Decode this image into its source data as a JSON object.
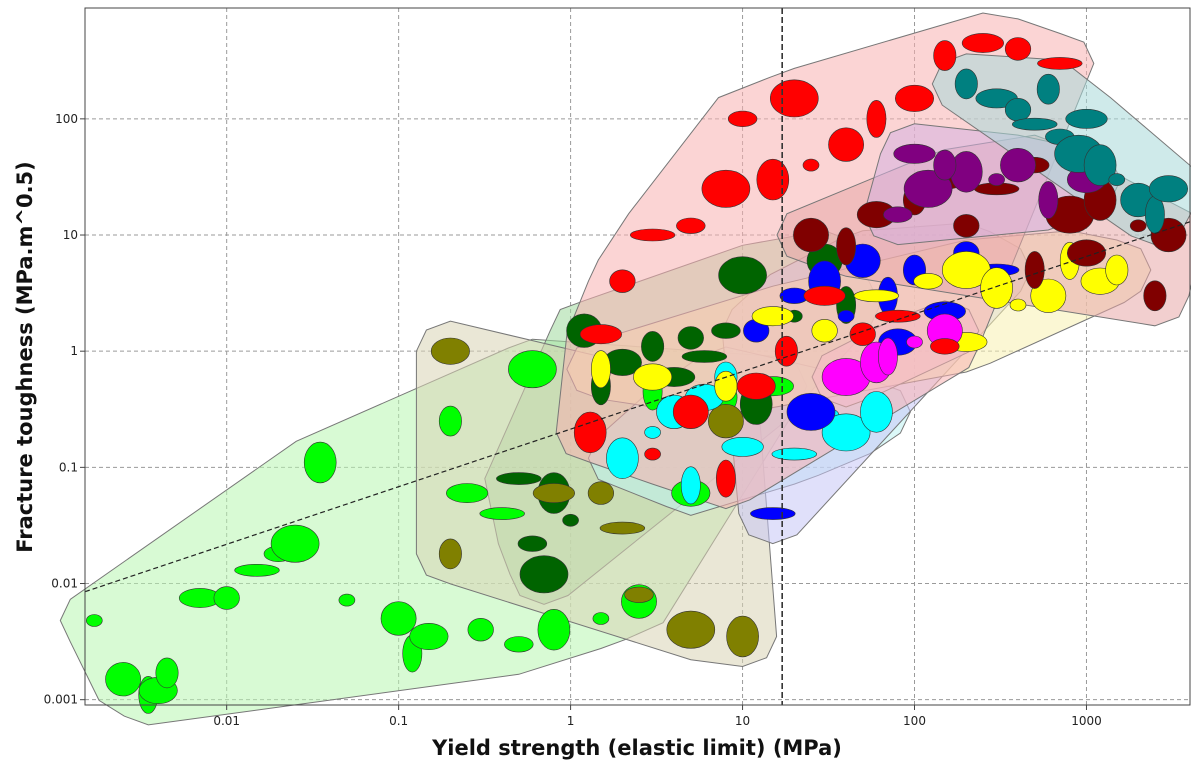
{
  "chart_data": {
    "type": "scatter",
    "title": "",
    "xlabel": "Yield strength (elastic limit) (MPa)",
    "ylabel": "Fracture toughness (MPa.m^0.5)",
    "x_scale": "log",
    "y_scale": "log",
    "xlim": [
      0.0015,
      4000
    ],
    "ylim": [
      0.0009,
      900
    ],
    "x_ticks": [
      0.01,
      0.1,
      1,
      10,
      100,
      1000
    ],
    "x_tick_labels": [
      "0.01",
      "0.1",
      "1",
      "10",
      "100",
      "1000"
    ],
    "y_ticks": [
      0.001,
      0.01,
      0.1,
      1,
      10,
      100
    ],
    "y_tick_labels": [
      "0.001",
      "0.01",
      "0.1",
      "1",
      "10",
      "100"
    ],
    "grid": true,
    "reference_lines": [
      {
        "kind": "vertical",
        "x": 17
      },
      {
        "kind": "guide",
        "points": [
          [
            0.0015,
            0.0085
          ],
          [
            4000,
            13
          ]
        ]
      }
    ],
    "series": [
      {
        "color": "#00ff00",
        "envelope_fill": "#b8f5b0",
        "points": [
          {
            "x": 0.0017,
            "y": 0.0048
          },
          {
            "x": 0.0025,
            "y": 0.0015
          },
          {
            "x": 0.0035,
            "y": 0.0011
          },
          {
            "x": 0.004,
            "y": 0.0012
          },
          {
            "x": 0.0045,
            "y": 0.0017
          },
          {
            "x": 0.007,
            "y": 0.0075
          },
          {
            "x": 0.01,
            "y": 0.0075
          },
          {
            "x": 0.015,
            "y": 0.013
          },
          {
            "x": 0.02,
            "y": 0.018
          },
          {
            "x": 0.025,
            "y": 0.022
          },
          {
            "x": 0.035,
            "y": 0.11
          },
          {
            "x": 0.05,
            "y": 0.0072
          },
          {
            "x": 0.1,
            "y": 0.005
          },
          {
            "x": 0.12,
            "y": 0.0025
          },
          {
            "x": 0.15,
            "y": 0.0035
          },
          {
            "x": 0.2,
            "y": 0.25
          },
          {
            "x": 0.25,
            "y": 0.06
          },
          {
            "x": 0.3,
            "y": 0.004
          },
          {
            "x": 0.4,
            "y": 0.04
          },
          {
            "x": 0.5,
            "y": 0.003
          },
          {
            "x": 0.6,
            "y": 0.7
          },
          {
            "x": 0.8,
            "y": 0.004
          },
          {
            "x": 1.5,
            "y": 0.005
          },
          {
            "x": 2.5,
            "y": 0.007
          },
          {
            "x": 3,
            "y": 0.45
          },
          {
            "x": 5,
            "y": 0.06
          },
          {
            "x": 8,
            "y": 0.4
          },
          {
            "x": 15,
            "y": 0.5
          }
        ]
      },
      {
        "color": "#006400",
        "envelope_fill": "#9ed99c",
        "points": [
          {
            "x": 0.5,
            "y": 0.08
          },
          {
            "x": 0.6,
            "y": 0.022
          },
          {
            "x": 0.7,
            "y": 0.012
          },
          {
            "x": 0.8,
            "y": 0.06
          },
          {
            "x": 1,
            "y": 0.035
          },
          {
            "x": 1.2,
            "y": 1.5
          },
          {
            "x": 1.5,
            "y": 0.5
          },
          {
            "x": 2,
            "y": 0.8
          },
          {
            "x": 3,
            "y": 1.1
          },
          {
            "x": 4,
            "y": 0.6
          },
          {
            "x": 5,
            "y": 1.3
          },
          {
            "x": 6,
            "y": 0.9
          },
          {
            "x": 8,
            "y": 1.5
          },
          {
            "x": 10,
            "y": 4.5
          },
          {
            "x": 12,
            "y": 0.35
          },
          {
            "x": 20,
            "y": 2
          },
          {
            "x": 30,
            "y": 6
          },
          {
            "x": 40,
            "y": 2.5
          }
        ]
      },
      {
        "color": "#808000",
        "envelope_fill": "#d9d3b5",
        "points": [
          {
            "x": 0.2,
            "y": 1
          },
          {
            "x": 0.2,
            "y": 0.018
          },
          {
            "x": 0.8,
            "y": 0.06
          },
          {
            "x": 1.5,
            "y": 0.06
          },
          {
            "x": 2,
            "y": 0.03
          },
          {
            "x": 2.5,
            "y": 0.008
          },
          {
            "x": 5,
            "y": 0.004
          },
          {
            "x": 10,
            "y": 0.0035
          },
          {
            "x": 4,
            "y": 0.35
          },
          {
            "x": 8,
            "y": 0.25
          }
        ]
      },
      {
        "color": "#00ffff",
        "envelope_fill": "#bdf2f2",
        "points": [
          {
            "x": 2,
            "y": 0.12
          },
          {
            "x": 3,
            "y": 0.2
          },
          {
            "x": 4,
            "y": 0.3
          },
          {
            "x": 5,
            "y": 0.07
          },
          {
            "x": 6,
            "y": 0.4
          },
          {
            "x": 8,
            "y": 0.6
          },
          {
            "x": 10,
            "y": 0.15
          },
          {
            "x": 12,
            "y": 0.5
          },
          {
            "x": 20,
            "y": 0.13
          },
          {
            "x": 30,
            "y": 0.28
          },
          {
            "x": 40,
            "y": 0.2
          },
          {
            "x": 60,
            "y": 0.3
          }
        ]
      },
      {
        "color": "#0000ff",
        "envelope_fill": "#c7c7f5",
        "points": [
          {
            "x": 12,
            "y": 1.5
          },
          {
            "x": 15,
            "y": 0.04
          },
          {
            "x": 20,
            "y": 3
          },
          {
            "x": 25,
            "y": 0.3
          },
          {
            "x": 30,
            "y": 4
          },
          {
            "x": 40,
            "y": 2
          },
          {
            "x": 50,
            "y": 6
          },
          {
            "x": 70,
            "y": 3
          },
          {
            "x": 80,
            "y": 1.2
          },
          {
            "x": 100,
            "y": 5
          },
          {
            "x": 150,
            "y": 2.2
          },
          {
            "x": 200,
            "y": 7
          },
          {
            "x": 300,
            "y": 5
          },
          {
            "x": 60,
            "y": 0.7
          }
        ]
      },
      {
        "color": "#ffff00",
        "envelope_fill": "#f7f0b0",
        "points": [
          {
            "x": 1.5,
            "y": 0.7
          },
          {
            "x": 3,
            "y": 0.6
          },
          {
            "x": 8,
            "y": 0.5
          },
          {
            "x": 15,
            "y": 2
          },
          {
            "x": 30,
            "y": 1.5
          },
          {
            "x": 60,
            "y": 3
          },
          {
            "x": 120,
            "y": 4
          },
          {
            "x": 200,
            "y": 5
          },
          {
            "x": 300,
            "y": 3.5
          },
          {
            "x": 400,
            "y": 2.5
          },
          {
            "x": 600,
            "y": 3
          },
          {
            "x": 800,
            "y": 6
          },
          {
            "x": 1200,
            "y": 4
          },
          {
            "x": 1500,
            "y": 5
          },
          {
            "x": 200,
            "y": 1.2
          }
        ]
      },
      {
        "color": "#ff00ff",
        "envelope_fill": "#f2c2e0",
        "points": [
          {
            "x": 40,
            "y": 0.6
          },
          {
            "x": 60,
            "y": 0.8
          },
          {
            "x": 100,
            "y": 1.2
          },
          {
            "x": 150,
            "y": 1.5
          },
          {
            "x": 70,
            "y": 0.9
          }
        ]
      },
      {
        "color": "#ff0000",
        "envelope_fill": "#f7b0b0",
        "points": [
          {
            "x": 1.5,
            "y": 1.4
          },
          {
            "x": 2,
            "y": 4
          },
          {
            "x": 3,
            "y": 10
          },
          {
            "x": 5,
            "y": 12
          },
          {
            "x": 8,
            "y": 25
          },
          {
            "x": 15,
            "y": 30
          },
          {
            "x": 25,
            "y": 40
          },
          {
            "x": 40,
            "y": 60
          },
          {
            "x": 60,
            "y": 100
          },
          {
            "x": 100,
            "y": 150
          },
          {
            "x": 150,
            "y": 350
          },
          {
            "x": 250,
            "y": 450
          },
          {
            "x": 400,
            "y": 400
          },
          {
            "x": 700,
            "y": 300
          },
          {
            "x": 10,
            "y": 100
          },
          {
            "x": 20,
            "y": 150
          },
          {
            "x": 1.3,
            "y": 0.2
          },
          {
            "x": 3,
            "y": 0.13
          },
          {
            "x": 5,
            "y": 0.3
          },
          {
            "x": 8,
            "y": 0.08
          },
          {
            "x": 12,
            "y": 0.5
          },
          {
            "x": 18,
            "y": 1
          },
          {
            "x": 30,
            "y": 3
          },
          {
            "x": 50,
            "y": 1.4
          },
          {
            "x": 80,
            "y": 2
          },
          {
            "x": 150,
            "y": 1.1
          }
        ]
      },
      {
        "color": "#800000",
        "envelope_fill": "#e8a8a8",
        "points": [
          {
            "x": 25,
            "y": 10
          },
          {
            "x": 40,
            "y": 8
          },
          {
            "x": 60,
            "y": 15
          },
          {
            "x": 100,
            "y": 20
          },
          {
            "x": 150,
            "y": 30
          },
          {
            "x": 200,
            "y": 12
          },
          {
            "x": 300,
            "y": 25
          },
          {
            "x": 500,
            "y": 40
          },
          {
            "x": 800,
            "y": 15
          },
          {
            "x": 1200,
            "y": 20
          },
          {
            "x": 2000,
            "y": 12
          },
          {
            "x": 3000,
            "y": 10
          },
          {
            "x": 500,
            "y": 5
          },
          {
            "x": 1000,
            "y": 7
          },
          {
            "x": 2500,
            "y": 3
          }
        ]
      },
      {
        "color": "#800080",
        "envelope_fill": "#d5b0e0",
        "points": [
          {
            "x": 80,
            "y": 15
          },
          {
            "x": 120,
            "y": 25
          },
          {
            "x": 200,
            "y": 35
          },
          {
            "x": 300,
            "y": 30
          },
          {
            "x": 400,
            "y": 40
          },
          {
            "x": 600,
            "y": 20
          },
          {
            "x": 1000,
            "y": 30
          },
          {
            "x": 150,
            "y": 40
          },
          {
            "x": 100,
            "y": 50
          }
        ]
      },
      {
        "color": "#008080",
        "envelope_fill": "#a8d8d8",
        "points": [
          {
            "x": 200,
            "y": 200
          },
          {
            "x": 300,
            "y": 150
          },
          {
            "x": 400,
            "y": 120
          },
          {
            "x": 500,
            "y": 90
          },
          {
            "x": 700,
            "y": 70
          },
          {
            "x": 900,
            "y": 50
          },
          {
            "x": 1200,
            "y": 40
          },
          {
            "x": 1500,
            "y": 30
          },
          {
            "x": 2000,
            "y": 20
          },
          {
            "x": 2500,
            "y": 15
          },
          {
            "x": 3000,
            "y": 25
          },
          {
            "x": 600,
            "y": 180
          },
          {
            "x": 1000,
            "y": 100
          }
        ]
      }
    ]
  }
}
